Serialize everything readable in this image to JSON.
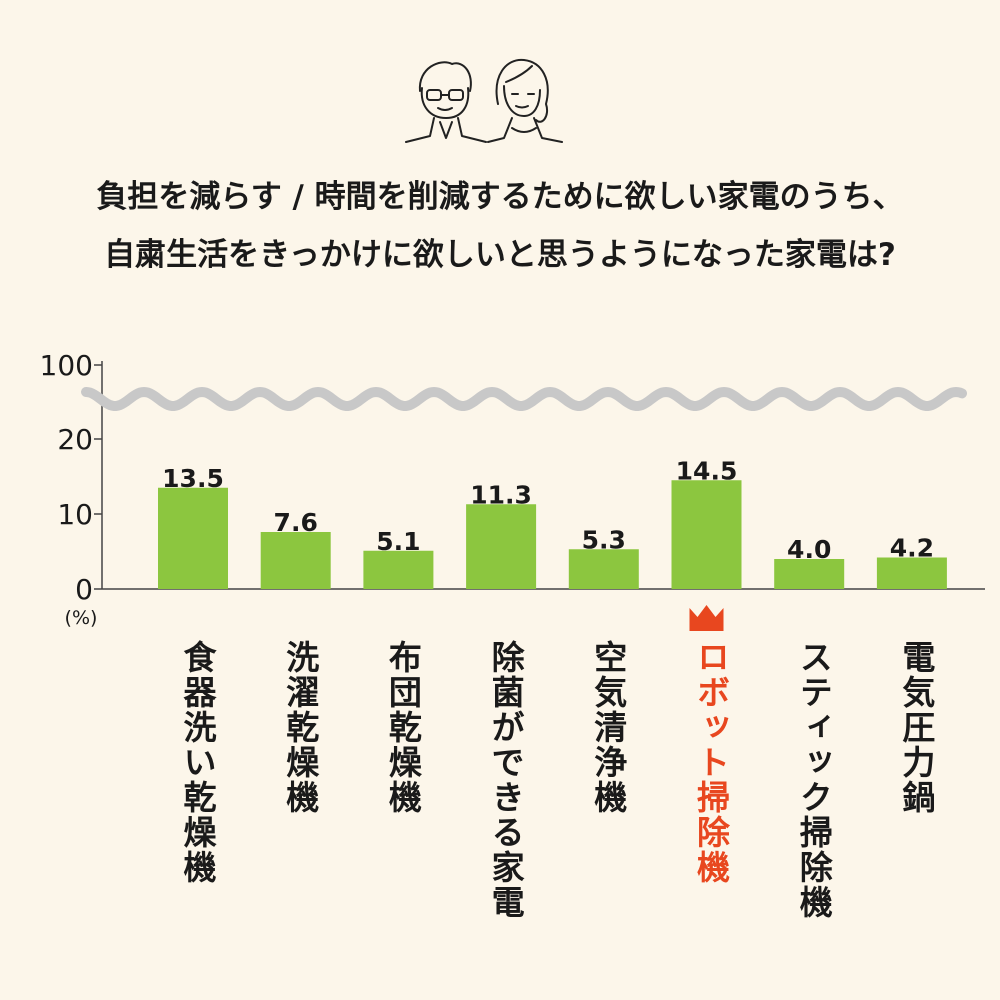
{
  "title": {
    "line1": "負担を減らす / 時間を削減するために欲しい家電のうち、",
    "line2": "自粛生活をきっかけに欲しいと思うようになった家電は?"
  },
  "colors": {
    "background": "#fcf6ea",
    "bar": "#8cc63f",
    "highlight": "#e8471f",
    "axis": "#444444",
    "break_wave": "#c8c8c8",
    "text": "#1a1a1a"
  },
  "icons": {
    "illustration": "elderly-couple-icon",
    "highlight_marker": "crown-icon"
  },
  "chart_data": {
    "type": "bar",
    "categories": [
      "食器洗い乾燥機",
      "洗濯乾燥機",
      "布団乾燥機",
      "除菌ができる家電",
      "空気清浄機",
      "ロボット掃除機",
      "スティック掃除機",
      "電気圧力鍋"
    ],
    "values": [
      13.5,
      7.6,
      5.1,
      11.3,
      5.3,
      14.5,
      4.0,
      4.2
    ],
    "value_labels": [
      "13.5",
      "7.6",
      "5.1",
      "11.3",
      "5.3",
      "14.5",
      "4.0",
      "4.2"
    ],
    "ylabel": "(%)",
    "yticks": [
      0,
      10,
      20,
      100
    ],
    "ytick_labels": [
      "0",
      "10",
      "20",
      "100"
    ],
    "ylim": [
      0,
      100
    ],
    "axis_break": "between 20 and 100",
    "highlight_category": "ロボット掃除機",
    "grid": false
  }
}
